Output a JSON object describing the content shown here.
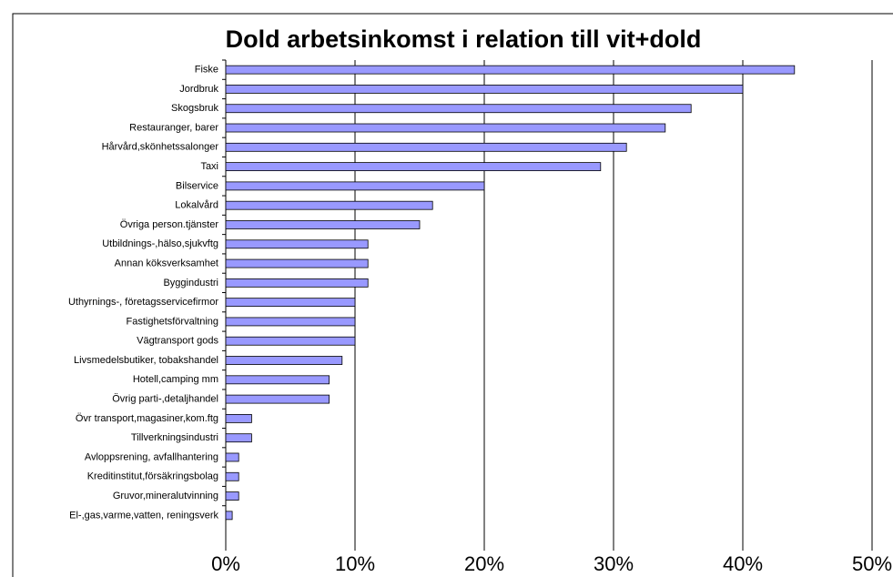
{
  "chart_data": {
    "type": "bar",
    "orientation": "horizontal",
    "title": "Dold arbetsinkomst i relation till vit+dold",
    "categories": [
      "Fiske",
      "Jordbruk",
      "Skogsbruk",
      "Restauranger, barer",
      "Hårvård,skönhetssalonger",
      "Taxi",
      "Bilservice",
      "Lokalvård",
      "Övriga person.tjänster",
      "Utbildnings-,hälso,sjukvftg",
      "Annan köksverksamhet",
      "Byggindustri",
      "Uthyrnings-, företagsservicefirmor",
      "Fastighetsförvaltning",
      "Vägtransport gods",
      "Livsmedelsbutiker, tobakshandel",
      "Hotell,camping mm",
      "Övrig parti-,detaljhandel",
      "Övr transport,magasiner,kom.ftg",
      "Tillverkningsindustri",
      "Avloppsrening, avfallhantering",
      "Kreditinstitut,försäkringsbolag",
      "Gruvor,mineralutvinning",
      "El-,gas,varme,vatten, reningsverk"
    ],
    "values": [
      44,
      40,
      36,
      34,
      31,
      29,
      20,
      16,
      15,
      11,
      11,
      11,
      10,
      10,
      10,
      9,
      8,
      8,
      2,
      2,
      1,
      1,
      1,
      0.5
    ],
    "color": "#9999ff",
    "xlim": [
      0,
      50
    ],
    "xticks": [
      {
        "value": 0,
        "label": "0%"
      },
      {
        "value": 10,
        "label": "10%"
      },
      {
        "value": 20,
        "label": "20%"
      },
      {
        "value": 30,
        "label": "30%"
      },
      {
        "value": 40,
        "label": "40%"
      },
      {
        "value": 50,
        "label": "50%"
      }
    ],
    "grid": true
  }
}
